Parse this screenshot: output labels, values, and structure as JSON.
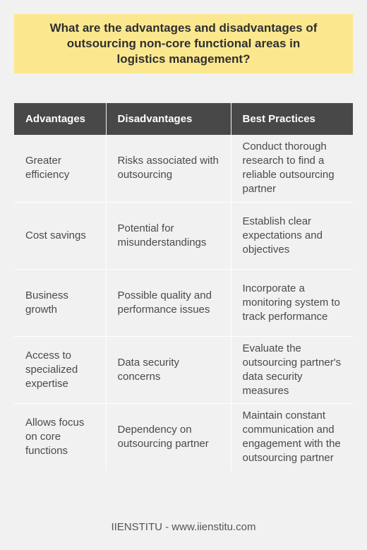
{
  "title": "What are the advantages and disadvantages of outsourcing non-core functional areas in logistics management?",
  "table": {
    "headers": [
      "Advantages",
      "Disadvantages",
      "Best Practices"
    ],
    "rows": [
      [
        "Greater efficiency",
        "Risks associated with outsourcing",
        "Conduct thorough research to find a reliable outsourcing partner"
      ],
      [
        "Cost savings",
        "Potential for misunderstandings",
        "Establish clear expectations and objectives"
      ],
      [
        "Business growth",
        "Possible quality and performance issues",
        "Incorporate a monitoring system to track performance"
      ],
      [
        "Access to specialized expertise",
        "Data security concerns",
        "Evaluate the outsourcing partner's data security measures"
      ],
      [
        "Allows focus on core functions",
        "Dependency on outsourcing partner",
        "Maintain constant communication and engagement with the outsourcing partner"
      ]
    ]
  },
  "footer": "IIENSTITU - www.iienstitu.com",
  "colors": {
    "title_background": "#fbe88e",
    "header_background": "#484848",
    "page_background": "#f1f1f1"
  }
}
